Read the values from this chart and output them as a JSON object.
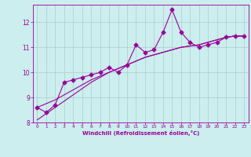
{
  "x": [
    0,
    1,
    2,
    3,
    4,
    5,
    6,
    7,
    8,
    9,
    10,
    11,
    12,
    13,
    14,
    15,
    16,
    17,
    18,
    19,
    20,
    21,
    22,
    23
  ],
  "y_main": [
    8.6,
    8.4,
    8.7,
    9.6,
    9.7,
    9.8,
    9.9,
    10.0,
    10.2,
    10.0,
    10.3,
    11.1,
    10.8,
    10.9,
    11.6,
    12.5,
    11.6,
    11.2,
    11.0,
    11.1,
    11.2,
    11.4,
    11.45,
    11.45
  ],
  "y_trend1": [
    8.6,
    8.75,
    8.9,
    9.1,
    9.3,
    9.5,
    9.7,
    9.85,
    10.0,
    10.15,
    10.3,
    10.45,
    10.6,
    10.7,
    10.8,
    10.9,
    11.0,
    11.05,
    11.1,
    11.2,
    11.3,
    11.4,
    11.45,
    11.45
  ],
  "y_trend2": [
    8.1,
    8.35,
    8.6,
    8.85,
    9.1,
    9.35,
    9.6,
    9.8,
    10.0,
    10.15,
    10.3,
    10.45,
    10.6,
    10.7,
    10.8,
    10.9,
    11.0,
    11.05,
    11.1,
    11.2,
    11.3,
    11.4,
    11.45,
    11.45
  ],
  "xlim": [
    -0.5,
    23.5
  ],
  "ylim": [
    8.0,
    12.7
  ],
  "xlabel": "Windchill (Refroidissement éolien,°C)",
  "yticks": [
    8,
    9,
    10,
    11,
    12
  ],
  "xticks": [
    0,
    1,
    2,
    3,
    4,
    5,
    6,
    7,
    8,
    9,
    10,
    11,
    12,
    13,
    14,
    15,
    16,
    17,
    18,
    19,
    20,
    21,
    22,
    23
  ],
  "line_color": "#990099",
  "bg_color": "#cceeee",
  "grid_color": "#aacccc",
  "marker": "D",
  "marker_size": 2.5
}
